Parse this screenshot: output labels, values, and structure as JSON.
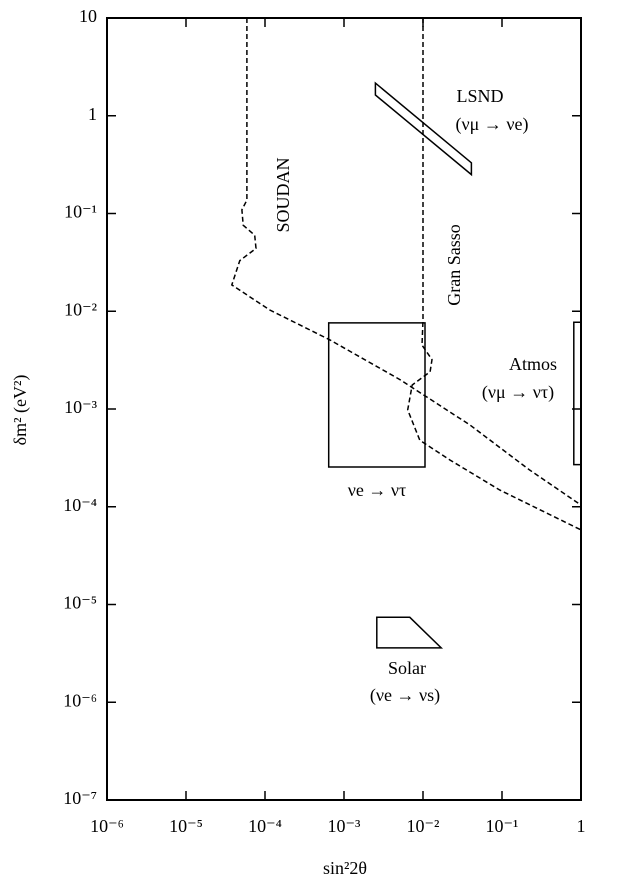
{
  "chart_data": {
    "type": "line",
    "xlabel": "sin²2θ",
    "ylabel": "δm² (eV²)",
    "xscale": "log",
    "yscale": "log",
    "xlim": [
      1e-06,
      1
    ],
    "ylim": [
      1e-07,
      10
    ],
    "xticks": [
      {
        "value": 1e-06,
        "label": "10⁻⁶"
      },
      {
        "value": 1e-05,
        "label": "10⁻⁵"
      },
      {
        "value": 0.0001,
        "label": "10⁻⁴"
      },
      {
        "value": 0.001,
        "label": "10⁻³"
      },
      {
        "value": 0.01,
        "label": "10⁻²"
      },
      {
        "value": 0.1,
        "label": "10⁻¹"
      },
      1
    ],
    "yticks": [
      {
        "value": 1e-07,
        "label": "10⁻⁷"
      },
      {
        "value": 1e-06,
        "label": "10⁻⁶"
      },
      {
        "value": 1e-05,
        "label": "10⁻⁵"
      },
      {
        "value": 0.0001,
        "label": "10⁻⁴"
      },
      {
        "value": 0.001,
        "label": "10⁻³"
      },
      {
        "value": 0.01,
        "label": "10⁻²"
      },
      {
        "value": 0.1,
        "label": "10⁻¹"
      },
      1,
      10
    ],
    "color": "#000000",
    "curves": [
      {
        "x": [
          5.9e-05,
          5.9e-05,
          5.1e-05,
          5.3e-05,
          7.4e-05,
          7.7e-05,
          4.8e-05,
          3.8e-05,
          0.000115,
          0.00066,
          0.0051,
          0.039,
          0.22,
          1
        ],
        "y": [
          10,
          0.137,
          0.109,
          0.076,
          0.06,
          0.044,
          0.033,
          0.0186,
          0.0103,
          0.0051,
          0.002,
          0.00069,
          0.00024,
          0.000104
        ]
      },
      {
        "x": [
          0.01,
          0.01,
          0.0097,
          0.013,
          0.0123,
          0.0073,
          0.0064,
          0.0091,
          0.022,
          0.094,
          1
        ],
        "y": [
          10,
          0.0081,
          0.0045,
          0.0032,
          0.0024,
          0.00176,
          0.00098,
          0.00048,
          0.0003,
          0.000148,
          5.8e-05
        ]
      }
    ],
    "regions": [
      {
        "x": [
          0.0025,
          0.0025,
          0.041,
          0.041
        ],
        "y": [
          2.16,
          1.63,
          0.25,
          0.33
        ]
      },
      {
        "x": [
          0.00064,
          0.0106,
          0.0106,
          0.00064
        ],
        "y": [
          0.0076,
          0.0076,
          0.000255,
          0.000255
        ]
      },
      {
        "x": [
          0.81,
          1,
          1,
          0.81
        ],
        "y": [
          0.0077,
          0.0077,
          0.00027,
          0.00027
        ]
      },
      {
        "x": [
          0.0026,
          0.0026,
          0.017,
          0.0068
        ],
        "y": [
          7.4e-06,
          3.6e-06,
          3.6e-06,
          7.4e-06
        ]
      }
    ],
    "annotations": [
      "SOUDAN",
      "Gran Sasso",
      "LSND",
      "(νμ → νe)",
      "Atmos",
      "(νμ → ντ)",
      "νe → ντ",
      "Solar",
      "(νe → νs)"
    ]
  }
}
